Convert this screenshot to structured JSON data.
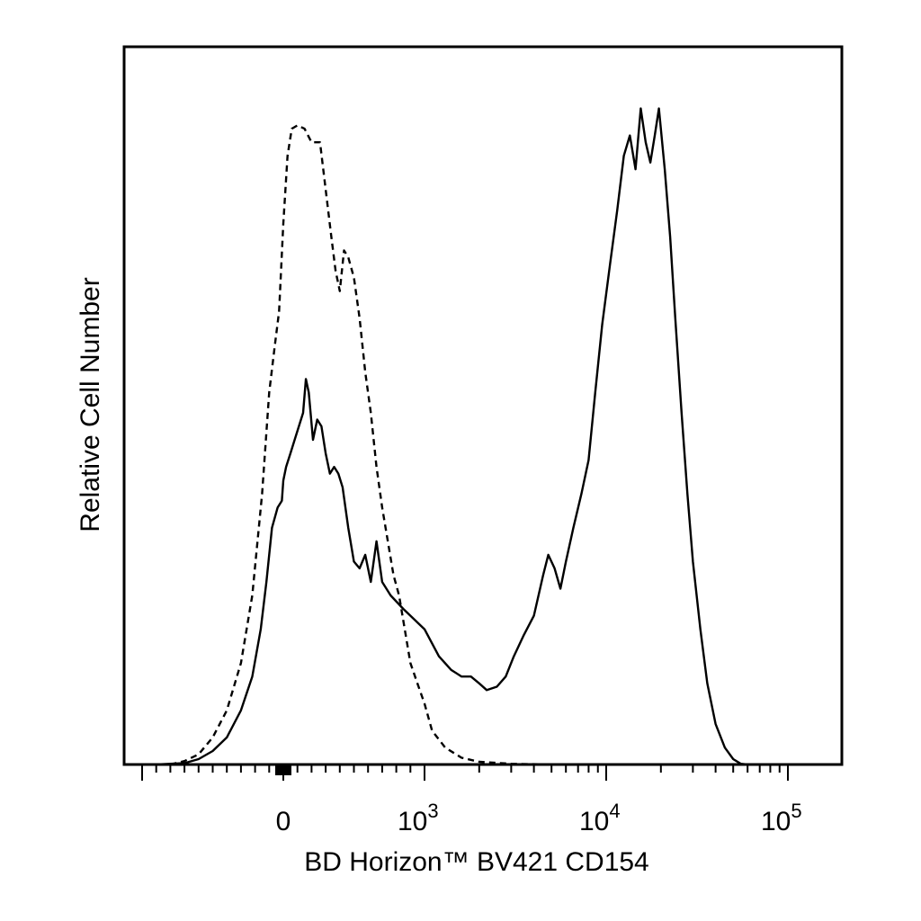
{
  "chart_data": {
    "type": "line",
    "title": "",
    "xlabel": "BD Horizon™ BV421 CD154",
    "ylabel": "Relative Cell Number",
    "x_scale": "biexponential",
    "xlim": [
      -1000,
      200000
    ],
    "ylim": [
      0,
      100
    ],
    "grid": false,
    "legend": "none",
    "x_tick_labels": [
      {
        "value": 0,
        "label": "0"
      },
      {
        "value": 1000,
        "label": "10",
        "exponent": "3"
      },
      {
        "value": 10000,
        "label": "10",
        "exponent": "4"
      },
      {
        "value": 100000,
        "label": "10",
        "exponent": "5"
      }
    ],
    "series": [
      {
        "style": "dashed",
        "color": "#000000",
        "points": [
          [
            -800,
            0
          ],
          [
            -700,
            0.5
          ],
          [
            -600,
            1.5
          ],
          [
            -500,
            4
          ],
          [
            -400,
            8
          ],
          [
            -300,
            15
          ],
          [
            -220,
            25
          ],
          [
            -150,
            40
          ],
          [
            -100,
            55
          ],
          [
            -60,
            62
          ],
          [
            -30,
            67
          ],
          [
            0,
            80
          ],
          [
            30,
            90
          ],
          [
            60,
            94
          ],
          [
            100,
            94.5
          ],
          [
            150,
            94
          ],
          [
            200,
            92
          ],
          [
            260,
            92
          ],
          [
            300,
            85
          ],
          [
            340,
            78
          ],
          [
            370,
            73
          ],
          [
            400,
            70
          ],
          [
            430,
            76
          ],
          [
            460,
            75
          ],
          [
            500,
            72
          ],
          [
            540,
            66
          ],
          [
            580,
            58
          ],
          [
            620,
            52
          ],
          [
            660,
            44
          ],
          [
            700,
            38
          ],
          [
            740,
            33
          ],
          [
            780,
            28
          ],
          [
            820,
            25
          ],
          [
            860,
            20
          ],
          [
            900,
            15
          ],
          [
            950,
            12
          ],
          [
            1000,
            9
          ],
          [
            1100,
            5
          ],
          [
            1300,
            2.5
          ],
          [
            1600,
            1
          ],
          [
            2000,
            0.4
          ],
          [
            3000,
            0.1
          ],
          [
            5000,
            0
          ],
          [
            200000,
            0
          ]
        ]
      },
      {
        "style": "solid",
        "color": "#000000",
        "points": [
          [
            -900,
            0
          ],
          [
            -700,
            0.2
          ],
          [
            -600,
            0.8
          ],
          [
            -500,
            2
          ],
          [
            -400,
            4
          ],
          [
            -300,
            8
          ],
          [
            -220,
            13
          ],
          [
            -160,
            20
          ],
          [
            -120,
            27
          ],
          [
            -80,
            35
          ],
          [
            -40,
            38
          ],
          [
            -10,
            39
          ],
          [
            0,
            42
          ],
          [
            20,
            44
          ],
          [
            50,
            46
          ],
          [
            80,
            48
          ],
          [
            110,
            50
          ],
          [
            140,
            52
          ],
          [
            160,
            57
          ],
          [
            180,
            55
          ],
          [
            210,
            48
          ],
          [
            240,
            51
          ],
          [
            270,
            50
          ],
          [
            300,
            46
          ],
          [
            330,
            43
          ],
          [
            360,
            44
          ],
          [
            390,
            43
          ],
          [
            420,
            41
          ],
          [
            460,
            35
          ],
          [
            500,
            30
          ],
          [
            540,
            29
          ],
          [
            580,
            31
          ],
          [
            620,
            27
          ],
          [
            660,
            33
          ],
          [
            700,
            27
          ],
          [
            760,
            25
          ],
          [
            850,
            23
          ],
          [
            1000,
            20
          ],
          [
            1200,
            16
          ],
          [
            1400,
            14
          ],
          [
            1600,
            13
          ],
          [
            1800,
            13
          ],
          [
            2000,
            12
          ],
          [
            2200,
            11
          ],
          [
            2500,
            11.5
          ],
          [
            2800,
            13
          ],
          [
            3100,
            16
          ],
          [
            3500,
            19
          ],
          [
            4000,
            22
          ],
          [
            4500,
            28
          ],
          [
            4800,
            31
          ],
          [
            5200,
            29
          ],
          [
            5600,
            26
          ],
          [
            6000,
            30
          ],
          [
            6600,
            35
          ],
          [
            7300,
            40
          ],
          [
            8000,
            45
          ],
          [
            8700,
            55
          ],
          [
            9500,
            65
          ],
          [
            10500,
            74
          ],
          [
            11500,
            82
          ],
          [
            12500,
            90
          ],
          [
            13500,
            93
          ],
          [
            14500,
            88
          ],
          [
            15500,
            97
          ],
          [
            16500,
            92
          ],
          [
            17500,
            89
          ],
          [
            18500,
            93
          ],
          [
            19500,
            97
          ],
          [
            21000,
            88
          ],
          [
            22500,
            78
          ],
          [
            24000,
            66
          ],
          [
            26000,
            52
          ],
          [
            28000,
            40
          ],
          [
            30000,
            30
          ],
          [
            33000,
            20
          ],
          [
            36000,
            12
          ],
          [
            40000,
            6
          ],
          [
            45000,
            2.5
          ],
          [
            50000,
            0.8
          ],
          [
            55000,
            0.1
          ],
          [
            60000,
            0
          ],
          [
            200000,
            0
          ]
        ]
      }
    ]
  }
}
